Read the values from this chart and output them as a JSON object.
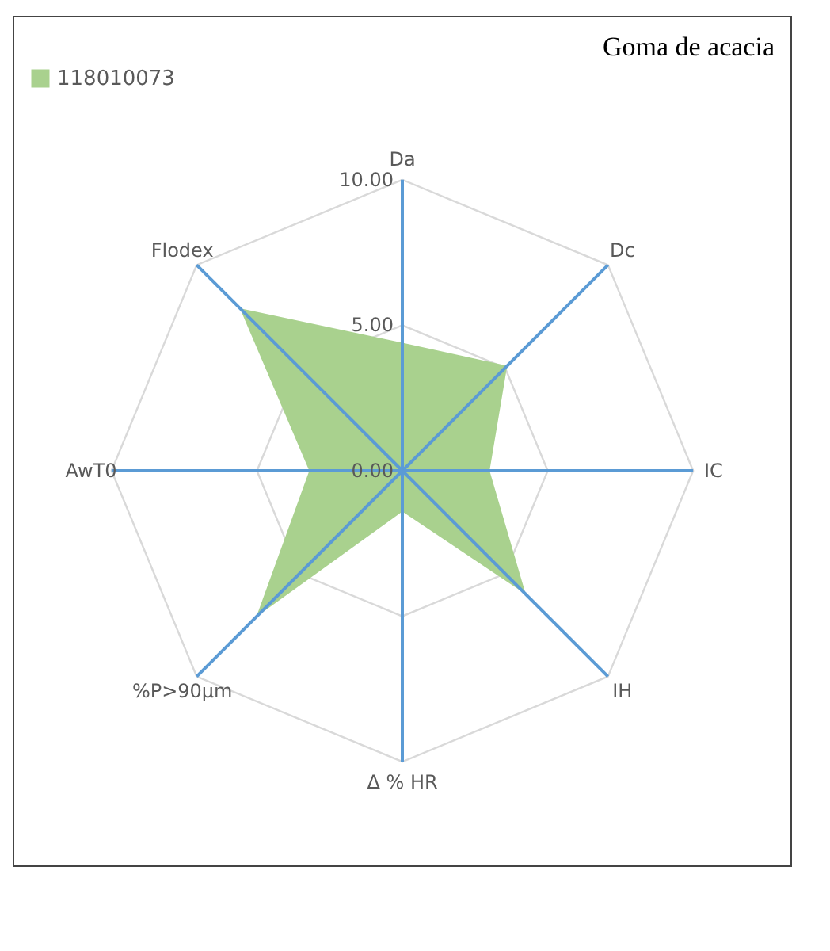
{
  "chart_data": {
    "type": "radar",
    "title": "Goma de acacia",
    "categories": [
      "Da",
      "Dc",
      "IC",
      "IH",
      "Δ % HR",
      "%P>90µm",
      "AwT0",
      "Flodex"
    ],
    "series": [
      {
        "name": "118010073",
        "color": "#a9d18e",
        "values": [
          4.4,
          5.1,
          3.0,
          6.0,
          1.4,
          7.1,
          3.2,
          7.9
        ]
      }
    ],
    "ylim": [
      0,
      10
    ],
    "yticks": [
      {
        "value": 0,
        "label": "0.00"
      },
      {
        "value": 5,
        "label": "5.00"
      },
      {
        "value": 10,
        "label": "10.00"
      }
    ],
    "grid": true,
    "legend": "top"
  }
}
